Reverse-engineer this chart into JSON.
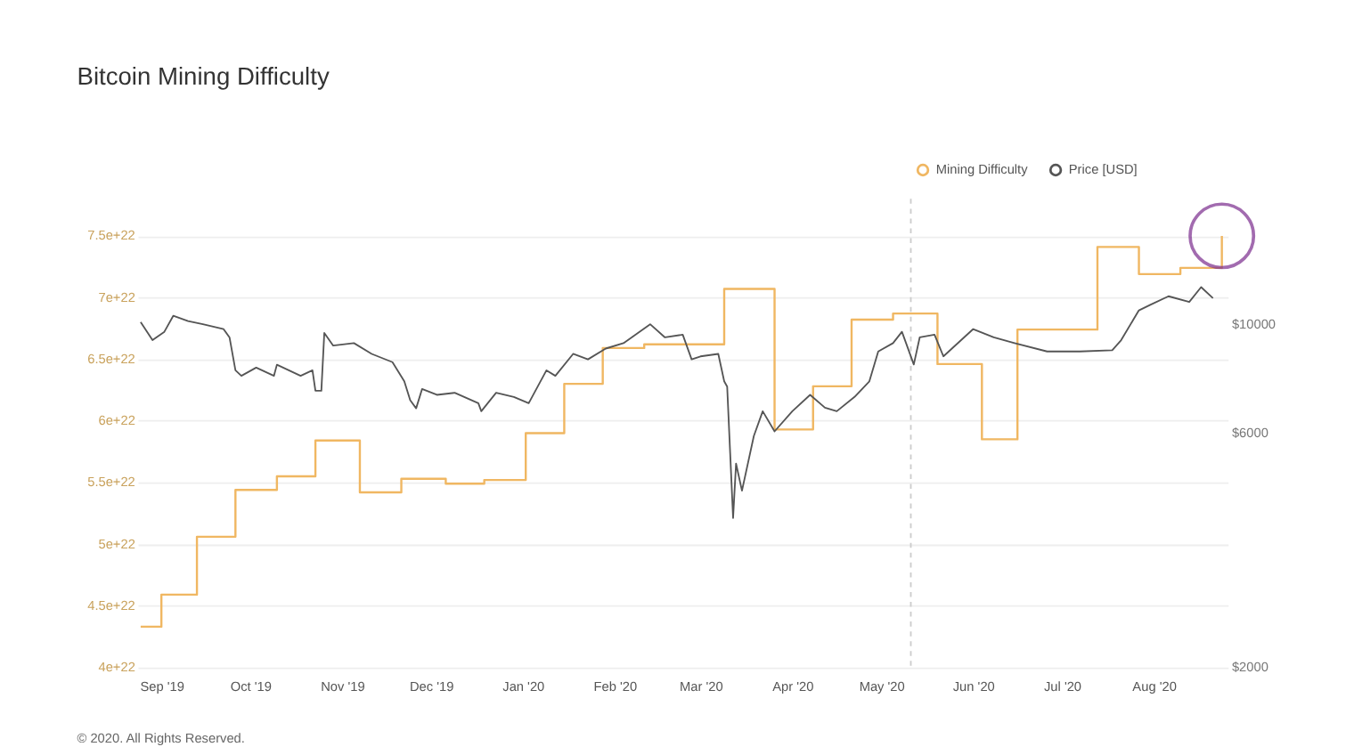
{
  "chart_data": {
    "type": "line",
    "title": "Bitcoin Mining Difficulty",
    "annotations": [
      "© 2020. All Rights Reserved."
    ],
    "xlim": [
      "2019-08-24",
      "2020-08-26"
    ],
    "xticks": [
      {
        "value": "2019-09-01",
        "label": "Sep '19"
      },
      {
        "value": "2019-10-01",
        "label": "Oct '19"
      },
      {
        "value": "2019-11-01",
        "label": "Nov '19"
      },
      {
        "value": "2019-12-01",
        "label": "Dec '19"
      },
      {
        "value": "2020-01-01",
        "label": "Jan '20"
      },
      {
        "value": "2020-02-01",
        "label": "Feb '20"
      },
      {
        "value": "2020-03-01",
        "label": "Mar '20"
      },
      {
        "value": "2020-04-01",
        "label": "Apr '20"
      },
      {
        "value": "2020-05-01",
        "label": "May '20"
      },
      {
        "value": "2020-06-01",
        "label": "Jun '20"
      },
      {
        "value": "2020-07-01",
        "label": "Jul '20"
      },
      {
        "value": "2020-08-01",
        "label": "Aug '20"
      }
    ],
    "ylim": [
      4e+22,
      7.8e+22
    ],
    "yticks": [
      {
        "value": 4e+22,
        "label": "4e+22"
      },
      {
        "value": 4.5e+22,
        "label": "4.5e+22"
      },
      {
        "value": 5e+22,
        "label": "5e+22"
      },
      {
        "value": 5.5e+22,
        "label": "5.5e+22"
      },
      {
        "value": 6e+22,
        "label": "6e+22"
      },
      {
        "value": 6.5e+22,
        "label": "6.5e+22"
      },
      {
        "value": 7e+22,
        "label": "7e+22"
      },
      {
        "value": 7.5e+22,
        "label": "7.5e+22"
      }
    ],
    "y2lim": [
      2000,
      18000
    ],
    "y2ticks": [
      {
        "value": 2000,
        "label": "$2000"
      },
      {
        "value": 6000,
        "label": "$6000"
      },
      {
        "value": 10000,
        "label": "$10000"
      }
    ],
    "log": "y2",
    "grid": "y",
    "legend": "top right",
    "ref_lines": [
      {
        "axis": "x",
        "value": "2020-05-11",
        "label": null,
        "color": "#cccccc",
        "line_style": "dashed"
      }
    ],
    "series": [
      {
        "name": "Mining Difficulty",
        "type": "step",
        "color": "#f0b762",
        "x": [
          "2019-08-25",
          "2019-09-01",
          "2019-09-13",
          "2019-09-26",
          "2019-10-10",
          "2019-10-23",
          "2019-11-07",
          "2019-11-21",
          "2019-12-06",
          "2019-12-19",
          "2020-01-02",
          "2020-01-15",
          "2020-01-28",
          "2020-02-11",
          "2020-03-09",
          "2020-03-26",
          "2020-04-08",
          "2020-04-21",
          "2020-05-05",
          "2020-05-20",
          "2020-06-04",
          "2020-06-16",
          "2020-07-13",
          "2020-07-27",
          "2020-08-10",
          "2020-08-24"
        ],
        "values": [
          4.33e+22,
          4.59e+22,
          5.06e+22,
          5.44e+22,
          5.55e+22,
          5.84e+22,
          5.42e+22,
          5.53e+22,
          5.49e+22,
          5.52e+22,
          5.9e+22,
          6.3e+22,
          6.59e+22,
          6.62e+22,
          7.07e+22,
          5.93e+22,
          6.28e+22,
          6.82e+22,
          6.87e+22,
          6.46e+22,
          5.85e+22,
          6.74e+22,
          7.41e+22,
          7.19e+22,
          7.24e+22,
          7.5e+22
        ]
      },
      {
        "name": "Price [USD]",
        "axis": "y2",
        "color": "#555555",
        "x": [
          "2019-08-25",
          "2019-08-29",
          "2019-09-02",
          "2019-09-05",
          "2019-09-10",
          "2019-09-15",
          "2019-09-22",
          "2019-09-24",
          "2019-09-26",
          "2019-09-28",
          "2019-10-03",
          "2019-10-09",
          "2019-10-10",
          "2019-10-18",
          "2019-10-22",
          "2019-10-23",
          "2019-10-25",
          "2019-10-26",
          "2019-10-29",
          "2019-11-05",
          "2019-11-11",
          "2019-11-18",
          "2019-11-22",
          "2019-11-24",
          "2019-11-26",
          "2019-11-28",
          "2019-12-03",
          "2019-12-09",
          "2019-12-17",
          "2019-12-18",
          "2019-12-23",
          "2019-12-29",
          "2020-01-03",
          "2020-01-09",
          "2020-01-12",
          "2020-01-18",
          "2020-01-23",
          "2020-01-29",
          "2020-02-04",
          "2020-02-13",
          "2020-02-18",
          "2020-02-24",
          "2020-02-27",
          "2020-03-01",
          "2020-03-07",
          "2020-03-09",
          "2020-03-10",
          "2020-03-12",
          "2020-03-13",
          "2020-03-15",
          "2020-03-19",
          "2020-03-22",
          "2020-03-26",
          "2020-04-01",
          "2020-04-07",
          "2020-04-12",
          "2020-04-16",
          "2020-04-22",
          "2020-04-27",
          "2020-04-30",
          "2020-05-05",
          "2020-05-08",
          "2020-05-12",
          "2020-05-14",
          "2020-05-19",
          "2020-05-22",
          "2020-06-01",
          "2020-06-08",
          "2020-06-15",
          "2020-06-26",
          "2020-07-07",
          "2020-07-18",
          "2020-07-21",
          "2020-07-27",
          "2020-07-31",
          "2020-08-06",
          "2020-08-13",
          "2020-08-17",
          "2020-08-21"
        ],
        "values": [
          10100,
          9280,
          9650,
          10400,
          10150,
          10000,
          9770,
          9400,
          8055,
          7850,
          8160,
          7850,
          8270,
          7850,
          8055,
          7320,
          7320,
          9600,
          9045,
          9150,
          8700,
          8370,
          7650,
          7000,
          6740,
          7380,
          7180,
          7250,
          6905,
          6650,
          7250,
          7110,
          6905,
          8055,
          7850,
          8700,
          8480,
          8920,
          9150,
          10000,
          9400,
          9520,
          8480,
          8600,
          8700,
          7650,
          7460,
          4030,
          5200,
          4580,
          5920,
          6650,
          6050,
          6650,
          7180,
          6760,
          6650,
          7110,
          7650,
          8800,
          9150,
          9650,
          8280,
          9400,
          9520,
          8600,
          9770,
          9400,
          9150,
          8800,
          8800,
          8850,
          9280,
          10670,
          10960,
          11400,
          11100,
          11900,
          11300
        ]
      }
    ]
  }
}
